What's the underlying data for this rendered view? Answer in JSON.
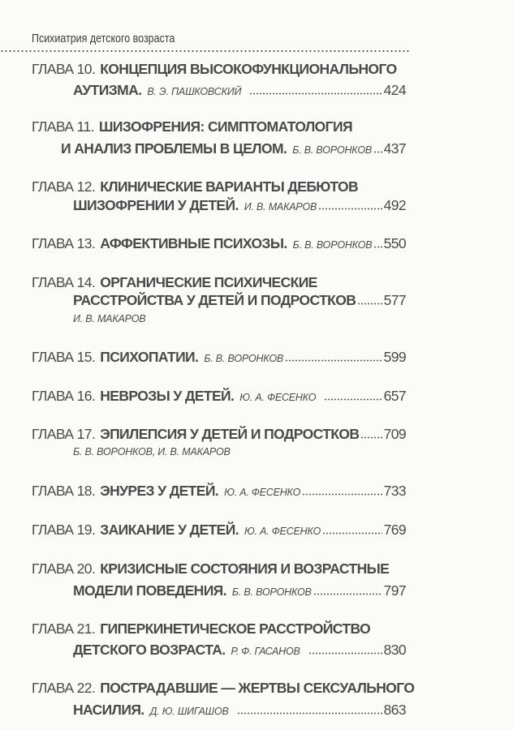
{
  "header": {
    "running_title": "Психиатрия детского возраста"
  },
  "entries": [
    {
      "chapter": "ГЛАВА 10.",
      "title1": "КОНЦЕПЦИЯ ВЫСОКОФУНКЦИОНАЛЬНОГО",
      "title2": "АУТИЗМА.",
      "author": "В. Э. ПАШКОВСКИЙ",
      "page": "424"
    },
    {
      "chapter": "ГЛАВА 11.",
      "title1": "ШИЗОФРЕНИЯ: СИМПТОМАТОЛОГИЯ",
      "title2": "И АНАЛИЗ ПРОБЛЕМЫ В ЦЕЛОМ.",
      "author": "Б. В. ВОРОНКОВ",
      "page": "437"
    },
    {
      "chapter": "ГЛАВА 12.",
      "title1": "КЛИНИЧЕСКИЕ ВАРИАНТЫ ДЕБЮТОВ",
      "title2": "ШИЗОФРЕНИИ У ДЕТЕЙ.",
      "author": "И. В. МАКАРОВ",
      "page": "492"
    },
    {
      "chapter": "ГЛАВА 13.",
      "title1": "АФФЕКТИВНЫЕ ПСИХОЗЫ.",
      "author": "Б. В. ВОРОНКОВ",
      "page": "550"
    },
    {
      "chapter": "ГЛАВА 14.",
      "title1": "ОРГАНИЧЕСКИЕ ПСИХИЧЕСКИЕ",
      "title2": "РАССТРОЙСТВА У ДЕТЕЙ И ПОДРОСТКОВ",
      "author": "И. В. МАКАРОВ",
      "page": "577"
    },
    {
      "chapter": "ГЛАВА 15.",
      "title1": "ПСИХОПАТИИ.",
      "author": "Б. В. ВОРОНКОВ",
      "page": "599"
    },
    {
      "chapter": "ГЛАВА 16.",
      "title1": "НЕВРОЗЫ У ДЕТЕЙ.",
      "author": "Ю. А. ФЕСЕНКО",
      "page": "657"
    },
    {
      "chapter": "ГЛАВА 17.",
      "title1": "ЭПИЛЕПСИЯ У ДЕТЕЙ И ПОДРОСТКОВ",
      "author": "Б. В. ВОРОНКОВ, И. В. МАКАРОВ",
      "page": "709"
    },
    {
      "chapter": "ГЛАВА 18.",
      "title1": "ЭНУРЕЗ У ДЕТЕЙ.",
      "author": "Ю. А. ФЕСЕНКО",
      "page": "733"
    },
    {
      "chapter": "ГЛАВА 19.",
      "title1": "ЗАИКАНИЕ У ДЕТЕЙ.",
      "author": "Ю. А. ФЕСЕНКО",
      "page": "769"
    },
    {
      "chapter": "ГЛАВА 20.",
      "title1": "КРИЗИСНЫЕ СОСТОЯНИЯ И ВОЗРАСТНЫЕ",
      "title2": "МОДЕЛИ ПОВЕДЕНИЯ.",
      "author": "Б. В. ВОРОНКОВ",
      "page": "797"
    },
    {
      "chapter": "ГЛАВА 21.",
      "title1": "ГИПЕРКИНЕТИЧЕСКОЕ РАССТРОЙСТВО",
      "title2": "ДЕТСКОГО ВОЗРАСТА.",
      "author": "Р. Ф. ГАСАНОВ",
      "page": "830"
    },
    {
      "chapter": "ГЛАВА 22.",
      "title1": "ПОСТРАДАВШИЕ — ЖЕРТВЫ СЕКСУАЛЬНОГО",
      "title2": "НАСИЛИЯ.",
      "author": "Д. Ю. ШИГАШОВ",
      "page": "863"
    }
  ]
}
